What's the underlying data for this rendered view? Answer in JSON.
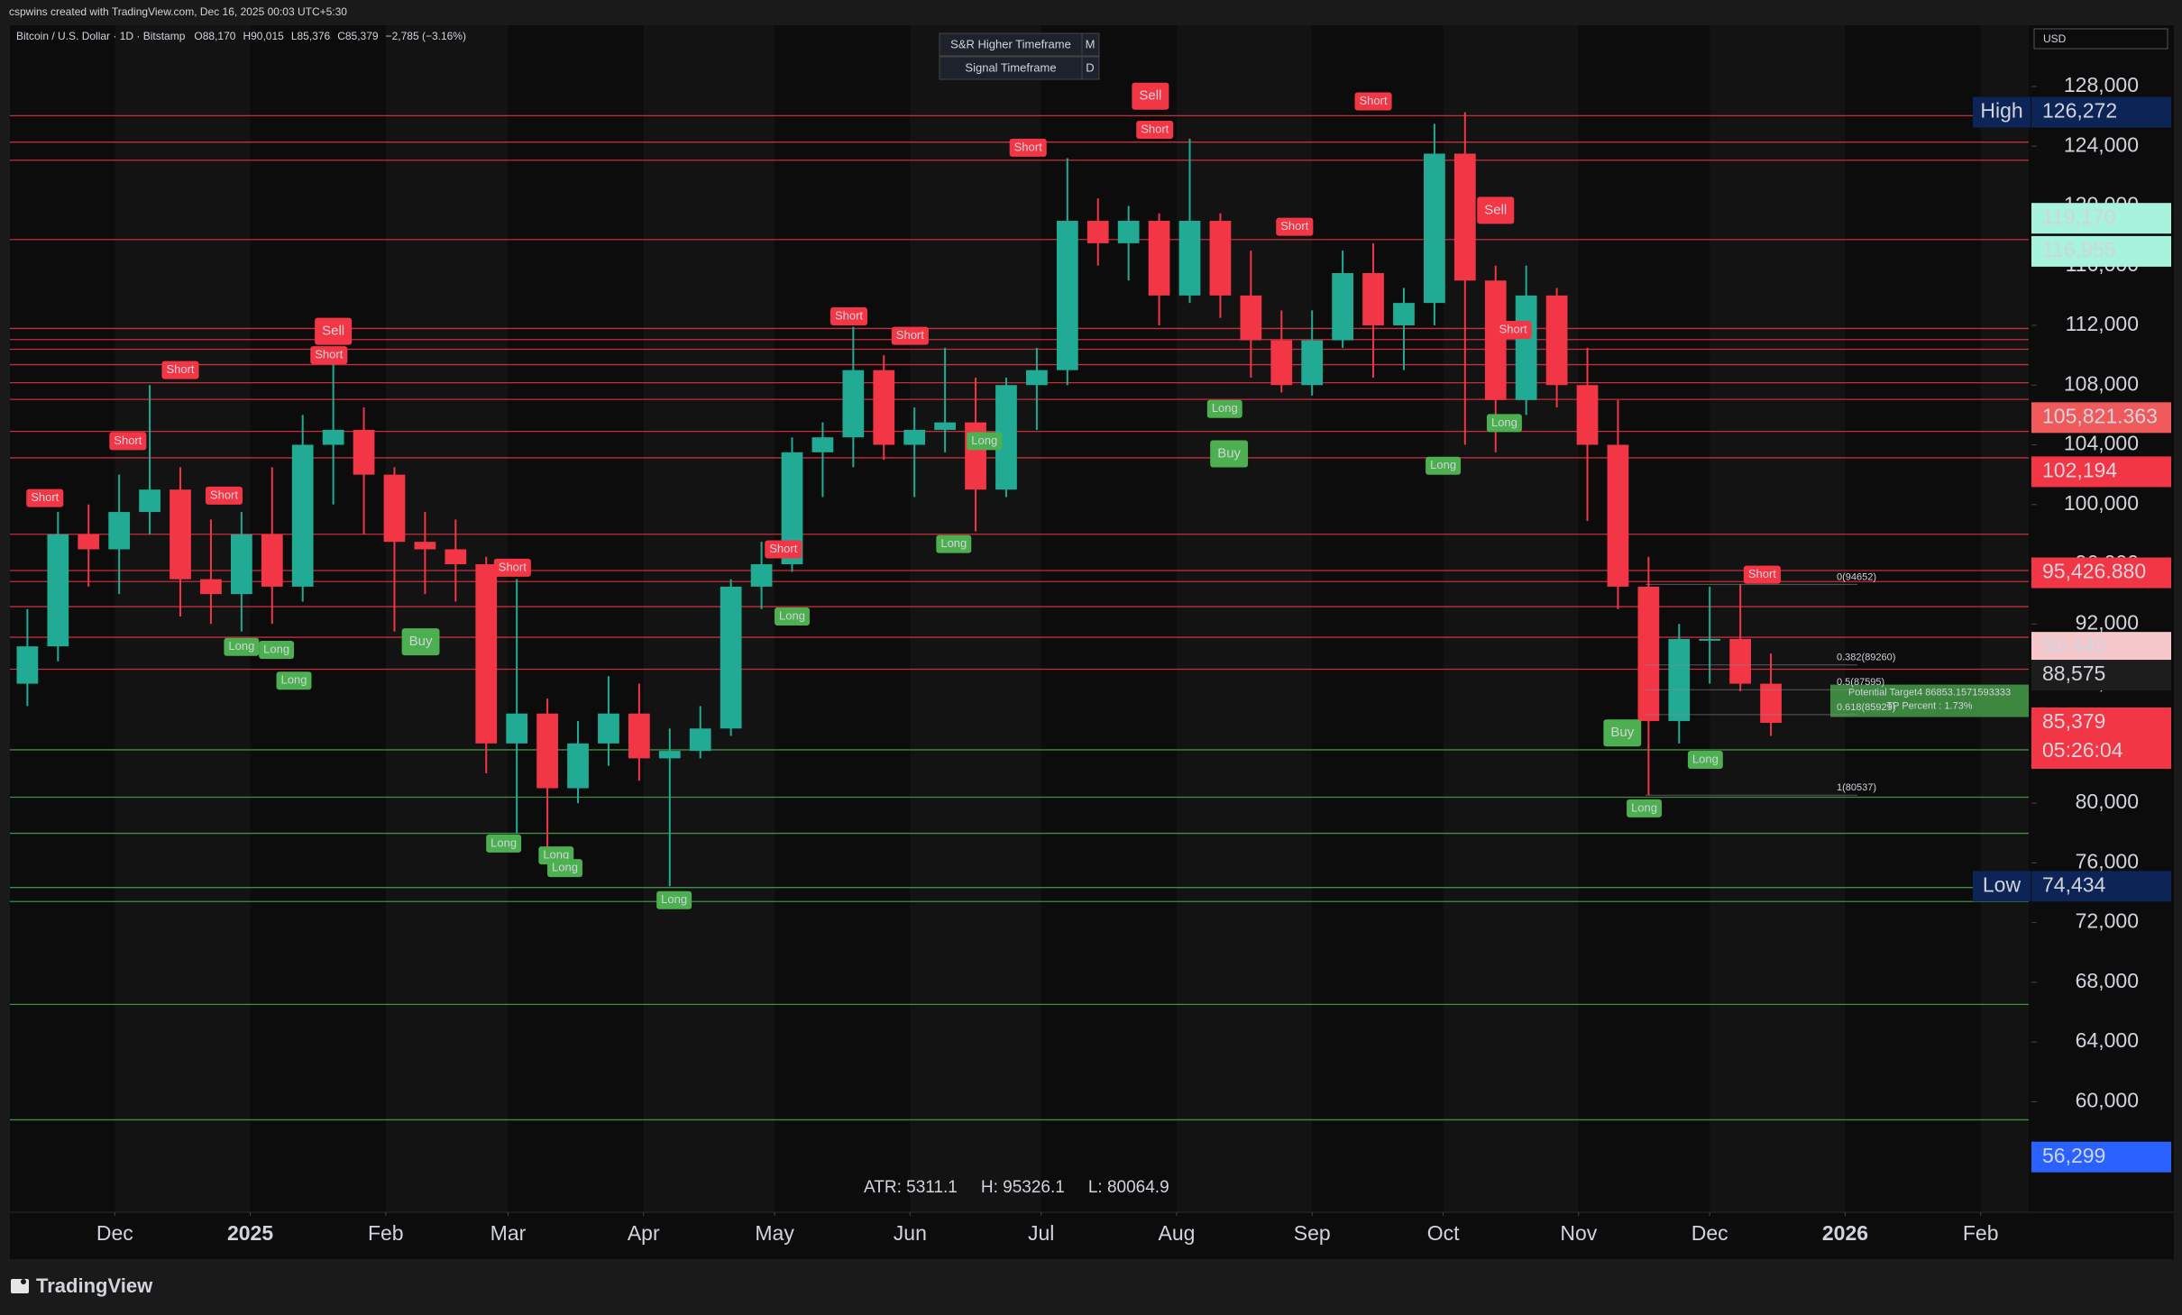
{
  "header": {
    "created": "cspwins created with TradingView.com, Dec 16, 2025 00:03 UTC+5:30"
  },
  "footer": {
    "brand": "TradingView"
  },
  "chart_data": {
    "type": "candlestick",
    "title": "Bitcoin / U.S. Dollar · 1D · Bitstamp",
    "ohlc_legend": [
      {
        "key": "O",
        "value": "88,170"
      },
      {
        "key": "H",
        "value": "90,015"
      },
      {
        "key": "L",
        "value": "85,376"
      },
      {
        "key": "C",
        "value": "85,379"
      }
    ],
    "change": "−2,785 (−3.16%)",
    "currency": "USD",
    "settings_table": [
      [
        "S&R Higher Timeframe",
        "M"
      ],
      [
        "Signal Timeframe",
        "D"
      ]
    ],
    "x": [
      -51,
      -44,
      -37,
      -30,
      -23,
      -16,
      -9,
      -2,
      5,
      12,
      19,
      26,
      33,
      40,
      47,
      54,
      61,
      68,
      75,
      82,
      89,
      96,
      103,
      110,
      117,
      124,
      131,
      138,
      145,
      152,
      159,
      166,
      173,
      180,
      187,
      194,
      201,
      208,
      215,
      222,
      229,
      236,
      243,
      250,
      257,
      264,
      271,
      278,
      285,
      292,
      299,
      306,
      313,
      320,
      327,
      334,
      341,
      348
    ],
    "open": [
      88000,
      90500,
      98000,
      97000,
      99500,
      101000,
      95000,
      94000,
      98000,
      94500,
      104000,
      105000,
      102000,
      97500,
      97000,
      96000,
      84000,
      86000,
      81000,
      84000,
      86000,
      83000,
      83500,
      85000,
      94500,
      96000,
      103500,
      104500,
      109000,
      104000,
      105000,
      105500,
      101000,
      108000,
      109000,
      119000,
      117500,
      119000,
      114000,
      119000,
      114000,
      111000,
      108000,
      111000,
      115500,
      112000,
      113500,
      123500,
      115000,
      107000,
      114000,
      108000,
      104000,
      94500,
      85500,
      91000,
      91000,
      88000
    ],
    "high": [
      93000,
      99500,
      100000,
      102000,
      108000,
      102500,
      99000,
      99500,
      102500,
      106000,
      109500,
      106500,
      102500,
      99500,
      99000,
      96500,
      95000,
      87000,
      85500,
      88500,
      88000,
      85000,
      86500,
      95000,
      97500,
      104500,
      105500,
      111900,
      110000,
      106500,
      110500,
      108500,
      108500,
      110500,
      123200,
      120500,
      120000,
      119500,
      124500,
      119500,
      117000,
      113000,
      113000,
      117000,
      117500,
      114500,
      125500,
      126272,
      116000,
      116000,
      114500,
      110500,
      107000,
      96500,
      92000,
      94500,
      94650,
      90015
    ],
    "low": [
      86500,
      89500,
      94500,
      94000,
      98000,
      92500,
      92000,
      91500,
      92000,
      93500,
      100000,
      98000,
      91500,
      94000,
      93500,
      82000,
      78000,
      76500,
      80000,
      82500,
      81500,
      74434,
      83000,
      84500,
      93000,
      95500,
      100500,
      102500,
      103000,
      100500,
      103500,
      98200,
      100500,
      105000,
      108000,
      116000,
      115000,
      112000,
      113500,
      112500,
      108500,
      107500,
      107300,
      110500,
      108500,
      109000,
      112000,
      104000,
      103500,
      106000,
      106500,
      98900,
      93000,
      80537,
      84000,
      88000,
      87500,
      84500
    ],
    "close": [
      90500,
      98000,
      97000,
      99500,
      101000,
      95000,
      94000,
      98000,
      94500,
      104000,
      105000,
      102000,
      97500,
      97000,
      96000,
      84000,
      86000,
      81000,
      84000,
      86000,
      83000,
      83500,
      85000,
      94500,
      96000,
      103500,
      104500,
      109000,
      104000,
      105000,
      105500,
      101000,
      108000,
      109000,
      119000,
      117500,
      119000,
      114000,
      119000,
      114000,
      111000,
      108000,
      111000,
      115500,
      112000,
      113500,
      123500,
      115000,
      107000,
      114000,
      108000,
      104000,
      94500,
      85500,
      91000,
      91000,
      88000,
      85379
    ],
    "up_color": "#22ab94",
    "down_color": "#f23645",
    "xlim": [
      -55,
      407
    ],
    "xticks": [
      {
        "value": -31,
        "label": "Dec"
      },
      {
        "value": 0,
        "label": "2025"
      },
      {
        "value": 31,
        "label": "Feb"
      },
      {
        "value": 59,
        "label": "Mar"
      },
      {
        "value": 90,
        "label": "Apr"
      },
      {
        "value": 120,
        "label": "May"
      },
      {
        "value": 151,
        "label": "Jun"
      },
      {
        "value": 181,
        "label": "Jul"
      },
      {
        "value": 212,
        "label": "Aug"
      },
      {
        "value": 243,
        "label": "Sep"
      },
      {
        "value": 273,
        "label": "Oct"
      },
      {
        "value": 304,
        "label": "Nov"
      },
      {
        "value": 334,
        "label": "Dec"
      },
      {
        "value": 365,
        "label": "2026"
      },
      {
        "value": 396,
        "label": "Feb"
      }
    ],
    "ylim": [
      52600,
      132100
    ],
    "yticks": [
      {
        "value": 60000,
        "label": "60,000"
      },
      {
        "value": 64000,
        "label": "64,000"
      },
      {
        "value": 68000,
        "label": "68,000"
      },
      {
        "value": 72000,
        "label": "72,000"
      },
      {
        "value": 76000,
        "label": "76,000"
      },
      {
        "value": 80000,
        "label": "80,000"
      },
      {
        "value": 84000,
        "label": "84,000"
      },
      {
        "value": 88000,
        "label": "88,000"
      },
      {
        "value": 92000,
        "label": "92,000"
      },
      {
        "value": 96000,
        "label": "96,000"
      },
      {
        "value": 100000,
        "label": "100,000"
      },
      {
        "value": 104000,
        "label": "104,000"
      },
      {
        "value": 108000,
        "label": "108,000"
      },
      {
        "value": 112000,
        "label": "112,000"
      },
      {
        "value": 116000,
        "label": "116,000"
      },
      {
        "value": 120000,
        "label": "120,000"
      },
      {
        "value": 124000,
        "label": "124,000"
      },
      {
        "value": 128000,
        "label": "128,000"
      }
    ],
    "levels": [
      {
        "value": 126040,
        "color": "#f23645"
      },
      {
        "value": 124270,
        "color": "#f23645"
      },
      {
        "value": 123060,
        "color": "#f23645"
      },
      {
        "value": 117750,
        "color": "#f23645"
      },
      {
        "value": 111790,
        "color": "#f23645"
      },
      {
        "value": 111050,
        "color": "#f23645"
      },
      {
        "value": 110400,
        "color": "#f23645"
      },
      {
        "value": 109370,
        "color": "#f23645"
      },
      {
        "value": 108160,
        "color": "#f23645"
      },
      {
        "value": 107040,
        "color": "#f23645"
      },
      {
        "value": 104900,
        "color": "#f23645"
      },
      {
        "value": 103130,
        "color": "#f23645"
      },
      {
        "value": 98010,
        "color": "#f23645"
      },
      {
        "value": 95580,
        "color": "#f23645"
      },
      {
        "value": 94840,
        "color": "#f23645"
      },
      {
        "value": 93160,
        "color": "#f23645"
      },
      {
        "value": 91110,
        "color": "#f23645"
      },
      {
        "value": 88970,
        "color": "#f23645"
      },
      {
        "value": 83570,
        "color": "#4caf50"
      },
      {
        "value": 80400,
        "color": "#4caf50"
      },
      {
        "value": 77980,
        "color": "#4caf50"
      },
      {
        "value": 74350,
        "color": "#4caf50"
      },
      {
        "value": 73410,
        "color": "#4caf50"
      },
      {
        "value": 66520,
        "color": "#4caf50"
      },
      {
        "value": 58790,
        "color": "#4caf50"
      }
    ],
    "signals": [
      {
        "label": "Short",
        "x": -47,
        "y": 100430,
        "color": "#f23645"
      },
      {
        "label": "Short",
        "x": -28,
        "y": 104250,
        "color": "#f23645"
      },
      {
        "label": "Short",
        "x": -16,
        "y": 109000,
        "color": "#f23645"
      },
      {
        "label": "Short",
        "x": -6,
        "y": 100600,
        "color": "#f23645"
      },
      {
        "label": "Sell",
        "x": 19,
        "y": 111600,
        "color": "#f23645"
      },
      {
        "label": "Short",
        "x": 18,
        "y": 110000,
        "color": "#f23645"
      },
      {
        "label": "Short",
        "x": 60,
        "y": 95770,
        "color": "#f23645"
      },
      {
        "label": "Short",
        "x": 137,
        "y": 112600,
        "color": "#f23645"
      },
      {
        "label": "Short",
        "x": 151,
        "y": 111300,
        "color": "#f23645"
      },
      {
        "label": "Short",
        "x": 178,
        "y": 123900,
        "color": "#f23645"
      },
      {
        "label": "Sell",
        "x": 206,
        "y": 127350,
        "color": "#f23645"
      },
      {
        "label": "Short",
        "x": 207,
        "y": 125100,
        "color": "#f23645"
      },
      {
        "label": "Short",
        "x": 239,
        "y": 118600,
        "color": "#f23645"
      },
      {
        "label": "Short",
        "x": 257,
        "y": 127000,
        "color": "#f23645"
      },
      {
        "label": "Sell",
        "x": 285,
        "y": 119700,
        "color": "#f23645"
      },
      {
        "label": "Short",
        "x": 289,
        "y": 111700,
        "color": "#f23645"
      },
      {
        "label": "Short",
        "x": 346,
        "y": 95300,
        "color": "#f23645"
      },
      {
        "label": "Short",
        "x": 122,
        "y": 97000,
        "color": "#f23645"
      },
      {
        "label": "Long",
        "x": -2,
        "y": 90460,
        "color": "#4caf50"
      },
      {
        "label": "Long",
        "x": 6,
        "y": 90270,
        "color": "#4caf50"
      },
      {
        "label": "Long",
        "x": 10,
        "y": 88200,
        "color": "#4caf50"
      },
      {
        "label": "Long",
        "x": 58,
        "y": 77300,
        "color": "#4caf50"
      },
      {
        "label": "Long",
        "x": 70,
        "y": 76500,
        "color": "#4caf50"
      },
      {
        "label": "Long",
        "x": 72,
        "y": 75650,
        "color": "#4caf50"
      },
      {
        "label": "Long",
        "x": 97,
        "y": 73500,
        "color": "#4caf50"
      },
      {
        "label": "Long",
        "x": 124,
        "y": 92500,
        "color": "#4caf50"
      },
      {
        "label": "Long",
        "x": 161,
        "y": 97350,
        "color": "#4caf50"
      },
      {
        "label": "Long",
        "x": 168,
        "y": 104250,
        "color": "#4caf50"
      },
      {
        "label": "Long",
        "x": 223,
        "y": 106400,
        "color": "#4caf50"
      },
      {
        "label": "Long",
        "x": 273,
        "y": 102600,
        "color": "#4caf50"
      },
      {
        "label": "Long",
        "x": 287,
        "y": 105460,
        "color": "#4caf50"
      },
      {
        "label": "Long",
        "x": 319,
        "y": 79650,
        "color": "#4caf50"
      },
      {
        "label": "Long",
        "x": 333,
        "y": 82900,
        "color": "#4caf50"
      },
      {
        "label": "Buy",
        "x": 39,
        "y": 90800,
        "color": "#4caf50"
      },
      {
        "label": "Buy",
        "x": 224,
        "y": 103400,
        "color": "#4caf50"
      },
      {
        "label": "Buy",
        "x": 314,
        "y": 84700,
        "color": "#4caf50"
      }
    ],
    "fib": [
      {
        "label": "0(94652)",
        "value": 94652
      },
      {
        "label": "0.382(89260)",
        "value": 89260
      },
      {
        "label": "0.5(87595)",
        "value": 87595
      },
      {
        "label": "0.618(85929)",
        "value": 85929
      },
      {
        "label": "1(80537)",
        "value": 80537
      }
    ],
    "target": {
      "value": 86853,
      "lines": [
        "Potential Target4 86853.1571593333",
        "TP Percent : 1.73%"
      ]
    },
    "stats": [
      {
        "label": "ATR: 5311.1",
        "color": "#ffeb3b"
      },
      {
        "label": "H: 95326.1",
        "color": "#f23645"
      },
      {
        "label": "L: 80064.9",
        "color": "#4caf50"
      }
    ],
    "price_tags": [
      {
        "prefix": "High",
        "label": "126,272",
        "value": 126272,
        "color": "#0c2456",
        "text_color": "#ffffff"
      },
      {
        "label": "119,170",
        "value": 119170,
        "color": "#a7f3dc",
        "text_color": "#0b1a14"
      },
      {
        "label": "116,955",
        "value": 116955,
        "color": "#a7f3dc",
        "text_color": "#0b1a14"
      },
      {
        "label": "105,821.363",
        "value": 105821,
        "color": "#f05a5a",
        "text_color": "#ffffff"
      },
      {
        "label": "102,194",
        "value": 102194,
        "color": "#f23645",
        "text_color": "#ffffff"
      },
      {
        "label": "95,426.880",
        "value": 95427,
        "color": "#f23645",
        "text_color": "#ffffff"
      },
      {
        "label": "90,440",
        "value": 90440,
        "color": "#f7c8cb",
        "text_color": "#1a0b0c"
      },
      {
        "label": "88,575",
        "value": 88575,
        "color": "#1d1d1d",
        "text_color": "#ffffff"
      },
      {
        "label": "85,379",
        "sub": "05:26:04",
        "value": 85379,
        "color": "#f23645",
        "text_color": "#ffffff"
      },
      {
        "prefix": "Low",
        "label": "74,434",
        "value": 74434,
        "color": "#0c2456",
        "text_color": "#ffffff"
      },
      {
        "label": "56,299",
        "value": 56299,
        "color": "#2962ff",
        "text_color": "#ffffff"
      }
    ]
  }
}
